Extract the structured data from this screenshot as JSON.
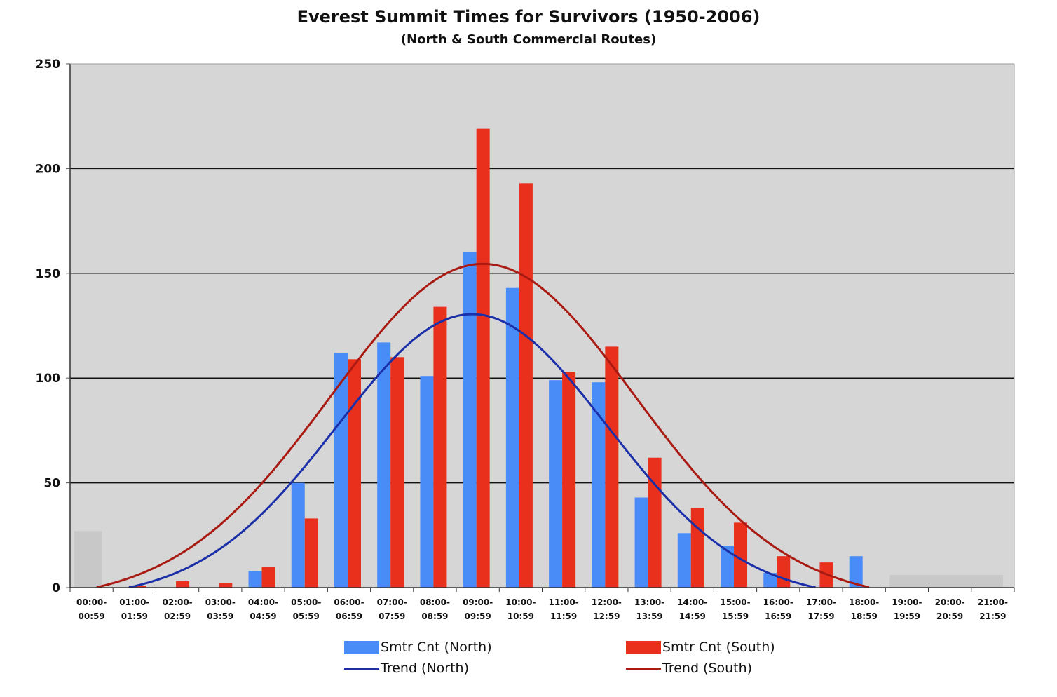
{
  "chart_data": {
    "type": "bar",
    "title": "Everest Summit Times for Survivors (1950-2006)",
    "subtitle": "(North & South Commercial Routes)",
    "xlabel": "",
    "ylabel": "",
    "ylim": [
      0,
      250
    ],
    "yticks": [
      "0",
      "50",
      "100",
      "150",
      "200",
      "250"
    ],
    "categories": [
      [
        "00:00-",
        "00:59"
      ],
      [
        "01:00-",
        "01:59"
      ],
      [
        "02:00-",
        "02:59"
      ],
      [
        "03:00-",
        "03:59"
      ],
      [
        "04:00-",
        "04:59"
      ],
      [
        "05:00-",
        "05:59"
      ],
      [
        "06:00-",
        "06:59"
      ],
      [
        "07:00-",
        "07:59"
      ],
      [
        "08:00-",
        "08:59"
      ],
      [
        "09:00-",
        "09:59"
      ],
      [
        "10:00-",
        "10:59"
      ],
      [
        "11:00-",
        "11:59"
      ],
      [
        "12:00-",
        "12:59"
      ],
      [
        "13:00-",
        "13:59"
      ],
      [
        "14:00-",
        "14:59"
      ],
      [
        "15:00-",
        "15:59"
      ],
      [
        "16:00-",
        "16:59"
      ],
      [
        "17:00-",
        "17:59"
      ],
      [
        "18:00-",
        "18:59"
      ],
      [
        "19:00-",
        "19:59"
      ],
      [
        "20:00-",
        "20:59"
      ],
      [
        "21:00-",
        "21:59"
      ]
    ],
    "series": [
      {
        "name": "Smtr Cnt (North)",
        "color": "#4a8cf7",
        "values": [
          0,
          0,
          0,
          0,
          8,
          50,
          112,
          117,
          101,
          160,
          143,
          99,
          98,
          43,
          26,
          20,
          7,
          0,
          15,
          0,
          0,
          0
        ]
      },
      {
        "name": "Smtr Cnt (South)",
        "color": "#e8301c",
        "values": [
          0,
          1,
          3,
          2,
          10,
          33,
          109,
          110,
          134,
          219,
          193,
          103,
          115,
          62,
          38,
          31,
          15,
          12,
          0,
          0,
          0,
          0
        ]
      }
    ],
    "trends": [
      {
        "name": "Trend (North)",
        "color": "#1a2fa8",
        "peak": 130.5,
        "peak_hour": 9.0,
        "sigma": 3.15,
        "baseline": 5.3
      },
      {
        "name": "Trend (South)",
        "color": "#a81a12",
        "peak": 154.5,
        "peak_hour": 9.25,
        "sigma": 3.55,
        "baseline": 6.3
      }
    ],
    "shaded_regions": [
      {
        "from_hour": 0,
        "to_hour": 1,
        "value": 27
      },
      {
        "from_hour": 19,
        "to_hour": 22,
        "value": 6
      }
    ],
    "grid": true,
    "legend_position": "bottom"
  }
}
